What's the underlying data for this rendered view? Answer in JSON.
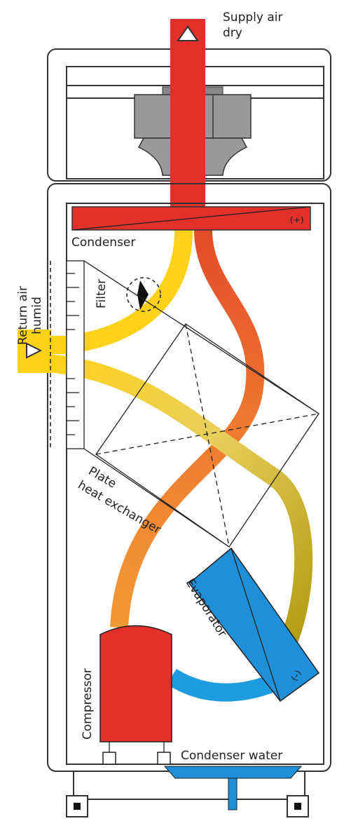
{
  "labels": {
    "supply_air": [
      "Supply air",
      "dry"
    ],
    "condenser": "Condenser",
    "condenser_sign": "(+)",
    "return_air": [
      "Return air",
      "humid"
    ],
    "filter": "Filter",
    "plate_heat_exchanger": [
      "Plate",
      "heat exchanger"
    ],
    "evaporator": "Evaporator",
    "evaporator_sign": "(–)",
    "compressor": "Compressor",
    "condenser_water": "Condenser water"
  }
}
